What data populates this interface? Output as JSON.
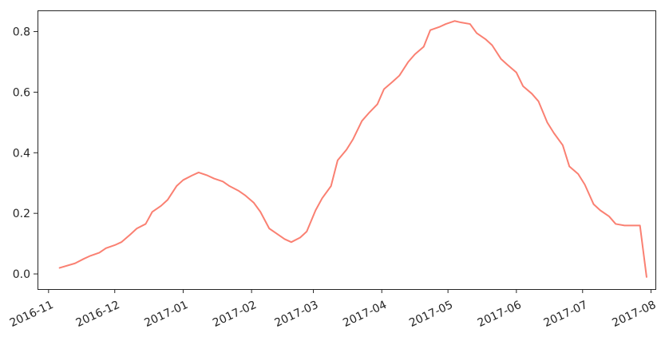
{
  "chart_data": {
    "type": "line",
    "title": "",
    "xlabel": "",
    "ylabel": "",
    "x_axis": "date",
    "xlim": [
      "2016-10-27",
      "2017-08-03"
    ],
    "ylim": [
      -0.05,
      0.87
    ],
    "grid": false,
    "x_ticks": [
      "2016-11",
      "2016-12",
      "2017-01",
      "2017-02",
      "2017-03",
      "2017-04",
      "2017-05",
      "2017-06",
      "2017-07",
      "2017-08"
    ],
    "y_ticks": [
      "0.0",
      "0.2",
      "0.4",
      "0.6",
      "0.8"
    ],
    "series": [
      {
        "color": "#fa8072",
        "x": [
          "2016-11-06",
          "2016-11-13",
          "2016-11-17",
          "2016-11-20",
          "2016-11-24",
          "2016-11-27",
          "2016-12-01",
          "2016-12-04",
          "2016-12-08",
          "2016-12-11",
          "2016-12-15",
          "2016-12-18",
          "2016-12-22",
          "2016-12-25",
          "2016-12-29",
          "2017-01-01",
          "2017-01-05",
          "2017-01-08",
          "2017-01-12",
          "2017-01-15",
          "2017-01-19",
          "2017-01-22",
          "2017-01-26",
          "2017-01-29",
          "2017-02-02",
          "2017-02-05",
          "2017-02-09",
          "2017-02-12",
          "2017-02-16",
          "2017-02-19",
          "2017-02-23",
          "2017-02-26",
          "2017-03-02",
          "2017-03-05",
          "2017-03-09",
          "2017-03-12",
          "2017-03-16",
          "2017-03-19",
          "2017-03-23",
          "2017-03-26",
          "2017-03-30",
          "2017-04-02",
          "2017-04-06",
          "2017-04-09",
          "2017-04-13",
          "2017-04-16",
          "2017-04-20",
          "2017-04-23",
          "2017-04-27",
          "2017-04-30",
          "2017-05-04",
          "2017-05-07",
          "2017-05-11",
          "2017-05-14",
          "2017-05-18",
          "2017-05-21",
          "2017-05-25",
          "2017-05-28",
          "2017-06-01",
          "2017-06-04",
          "2017-06-08",
          "2017-06-11",
          "2017-06-15",
          "2017-06-18",
          "2017-06-22",
          "2017-06-25",
          "2017-06-29",
          "2017-07-02",
          "2017-07-06",
          "2017-07-09",
          "2017-07-13",
          "2017-07-16",
          "2017-07-20",
          "2017-07-23",
          "2017-07-27",
          "2017-07-30"
        ],
        "values": [
          0.02,
          0.035,
          0.05,
          0.06,
          0.07,
          0.085,
          0.095,
          0.105,
          0.13,
          0.15,
          0.165,
          0.205,
          0.225,
          0.245,
          0.29,
          0.31,
          0.325,
          0.335,
          0.325,
          0.315,
          0.305,
          0.29,
          0.275,
          0.26,
          0.235,
          0.205,
          0.15,
          0.135,
          0.115,
          0.105,
          0.12,
          0.14,
          0.21,
          0.25,
          0.29,
          0.375,
          0.41,
          0.445,
          0.505,
          0.53,
          0.56,
          0.61,
          0.635,
          0.655,
          0.7,
          0.725,
          0.75,
          0.805,
          0.815,
          0.825,
          0.835,
          0.83,
          0.825,
          0.795,
          0.775,
          0.755,
          0.71,
          0.69,
          0.665,
          0.62,
          0.595,
          0.57,
          0.5,
          0.465,
          0.425,
          0.355,
          0.33,
          0.295,
          0.23,
          0.21,
          0.19,
          0.165,
          0.16,
          0.16,
          0.16,
          -0.01
        ]
      }
    ]
  }
}
